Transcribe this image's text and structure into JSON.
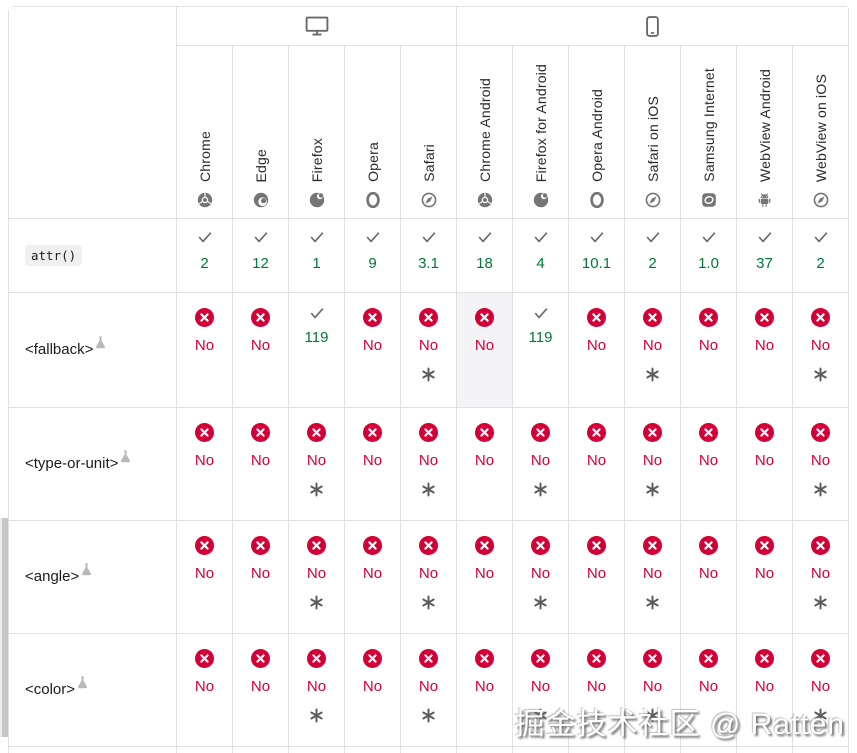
{
  "watermark": "掘金技术社区 @ Ratten",
  "colors": {
    "supported_green": "#007936",
    "unsupported_red": "#d30038",
    "border_gray": "#e0e0e2",
    "icon_gray": "#757575",
    "highlight_cell": "#f4f4f6"
  },
  "header": {
    "platforms": [
      {
        "name": "desktop",
        "icon": "desktop-icon",
        "colspan": 5
      },
      {
        "name": "mobile",
        "icon": "mobile-icon",
        "colspan": 7
      }
    ],
    "browsers": [
      {
        "label": "Chrome",
        "icon": "chrome-icon"
      },
      {
        "label": "Edge",
        "icon": "edge-icon"
      },
      {
        "label": "Firefox",
        "icon": "firefox-icon"
      },
      {
        "label": "Opera",
        "icon": "opera-icon"
      },
      {
        "label": "Safari",
        "icon": "safari-icon"
      },
      {
        "label": "Chrome Android",
        "icon": "chrome-icon"
      },
      {
        "label": "Firefox for Android",
        "icon": "firefox-icon"
      },
      {
        "label": "Opera Android",
        "icon": "opera-icon"
      },
      {
        "label": "Safari on iOS",
        "icon": "safari-icon"
      },
      {
        "label": "Samsung Internet",
        "icon": "samsung-internet-icon"
      },
      {
        "label": "WebView Android",
        "icon": "webview-android-icon"
      },
      {
        "label": "WebView on iOS",
        "icon": "safari-icon"
      }
    ]
  },
  "rows": [
    {
      "feature": "attr()",
      "style": "code",
      "experimental": false,
      "cells": [
        {
          "support": "yes",
          "version": "2"
        },
        {
          "support": "yes",
          "version": "12"
        },
        {
          "support": "yes",
          "version": "1"
        },
        {
          "support": "yes",
          "version": "9"
        },
        {
          "support": "yes",
          "version": "3.1"
        },
        {
          "support": "yes",
          "version": "18"
        },
        {
          "support": "yes",
          "version": "4"
        },
        {
          "support": "yes",
          "version": "10.1"
        },
        {
          "support": "yes",
          "version": "2"
        },
        {
          "support": "yes",
          "version": "1.0"
        },
        {
          "support": "yes",
          "version": "37"
        },
        {
          "support": "yes",
          "version": "2"
        }
      ]
    },
    {
      "feature": "<fallback>",
      "style": "plain",
      "experimental": true,
      "cells": [
        {
          "support": "no",
          "version": "No"
        },
        {
          "support": "no",
          "version": "No"
        },
        {
          "support": "yes",
          "version": "119"
        },
        {
          "support": "no",
          "version": "No"
        },
        {
          "support": "no",
          "version": "No",
          "footnote": true
        },
        {
          "support": "no",
          "version": "No",
          "highlight": true
        },
        {
          "support": "yes",
          "version": "119"
        },
        {
          "support": "no",
          "version": "No"
        },
        {
          "support": "no",
          "version": "No",
          "footnote": true
        },
        {
          "support": "no",
          "version": "No"
        },
        {
          "support": "no",
          "version": "No"
        },
        {
          "support": "no",
          "version": "No",
          "footnote": true
        }
      ]
    },
    {
      "feature": "<type-or-unit>",
      "style": "plain",
      "experimental": true,
      "cells": [
        {
          "support": "no",
          "version": "No"
        },
        {
          "support": "no",
          "version": "No"
        },
        {
          "support": "no",
          "version": "No",
          "footnote": true
        },
        {
          "support": "no",
          "version": "No"
        },
        {
          "support": "no",
          "version": "No",
          "footnote": true
        },
        {
          "support": "no",
          "version": "No"
        },
        {
          "support": "no",
          "version": "No",
          "footnote": true
        },
        {
          "support": "no",
          "version": "No"
        },
        {
          "support": "no",
          "version": "No",
          "footnote": true
        },
        {
          "support": "no",
          "version": "No"
        },
        {
          "support": "no",
          "version": "No"
        },
        {
          "support": "no",
          "version": "No",
          "footnote": true
        }
      ]
    },
    {
      "feature": "<angle>",
      "style": "plain",
      "experimental": true,
      "cells": [
        {
          "support": "no",
          "version": "No"
        },
        {
          "support": "no",
          "version": "No"
        },
        {
          "support": "no",
          "version": "No",
          "footnote": true
        },
        {
          "support": "no",
          "version": "No"
        },
        {
          "support": "no",
          "version": "No",
          "footnote": true
        },
        {
          "support": "no",
          "version": "No"
        },
        {
          "support": "no",
          "version": "No",
          "footnote": true
        },
        {
          "support": "no",
          "version": "No"
        },
        {
          "support": "no",
          "version": "No",
          "footnote": true
        },
        {
          "support": "no",
          "version": "No"
        },
        {
          "support": "no",
          "version": "No"
        },
        {
          "support": "no",
          "version": "No",
          "footnote": true
        }
      ]
    },
    {
      "feature": "<color>",
      "style": "plain",
      "experimental": true,
      "cells": [
        {
          "support": "no",
          "version": "No"
        },
        {
          "support": "no",
          "version": "No"
        },
        {
          "support": "no",
          "version": "No",
          "footnote": true
        },
        {
          "support": "no",
          "version": "No"
        },
        {
          "support": "no",
          "version": "No",
          "footnote": true
        },
        {
          "support": "no",
          "version": "No"
        },
        {
          "support": "no",
          "version": "No",
          "footnote": true
        },
        {
          "support": "no",
          "version": "No"
        },
        {
          "support": "no",
          "version": "No",
          "footnote": true
        },
        {
          "support": "no",
          "version": "No"
        },
        {
          "support": "no",
          "version": "No"
        },
        {
          "support": "no",
          "version": "No",
          "footnote": true
        }
      ]
    }
  ]
}
